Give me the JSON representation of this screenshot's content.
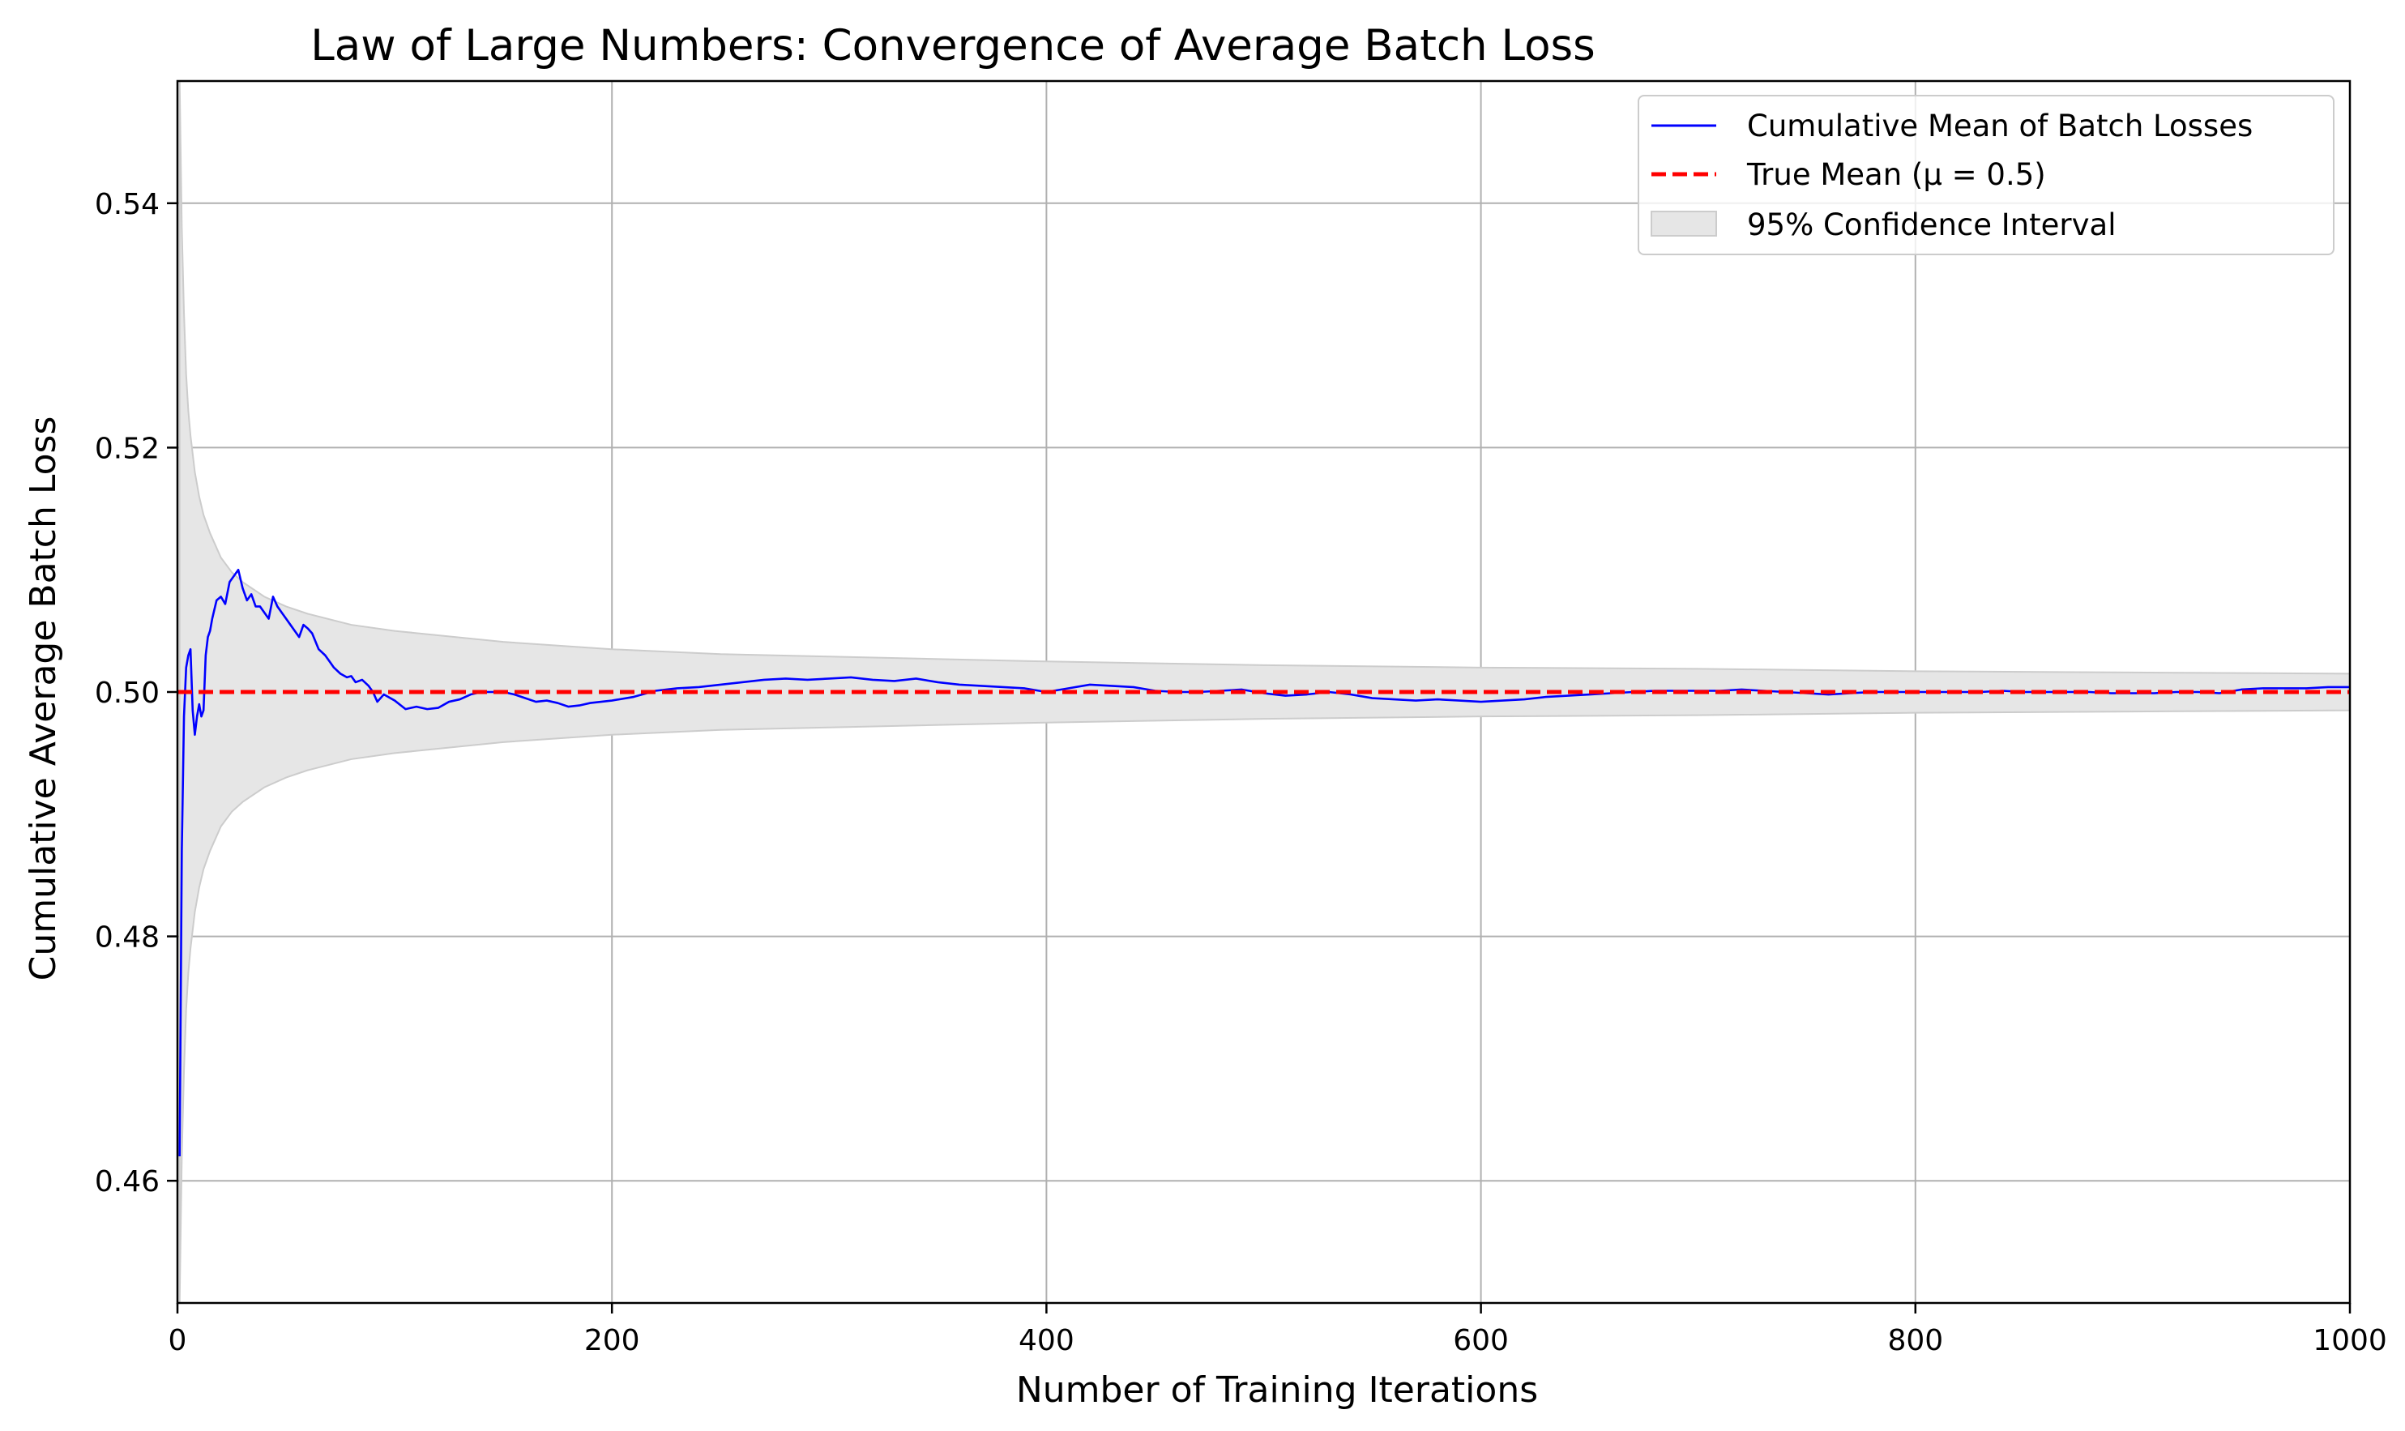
{
  "chart_data": {
    "type": "line",
    "title": "Law of Large Numbers: Convergence of Average Batch Loss",
    "xlabel": "Number of Training Iterations",
    "ylabel": "Cumulative Average Batch Loss",
    "xlim": [
      0,
      1000
    ],
    "ylim": [
      0.45,
      0.55
    ],
    "x_ticks": [
      0,
      200,
      400,
      600,
      800,
      1000
    ],
    "y_ticks": [
      0.46,
      0.48,
      0.5,
      0.52,
      0.54
    ],
    "x_tick_labels": [
      "0",
      "200",
      "400",
      "600",
      "800",
      "1000"
    ],
    "y_tick_labels": [
      "0.46",
      "0.48",
      "0.50",
      "0.52",
      "0.54"
    ],
    "grid": true,
    "legend_position": "top-right",
    "legend": [
      "Cumulative Mean of Batch Losses",
      "True Mean (μ = 0.5)",
      "95% Confidence Interval"
    ],
    "colors": {
      "series": "#0000ff",
      "true_mean": "#ff0000",
      "band": "#e6e6e6",
      "band_edge": "#cccccc",
      "grid": "#b0b0b0",
      "axes": "#000000"
    },
    "series": [
      {
        "name": "Cumulative Mean of Batch Losses",
        "x": [
          1,
          2,
          3,
          4,
          5,
          6,
          7,
          8,
          9,
          10,
          11,
          12,
          13,
          14,
          15,
          16,
          18,
          20,
          22,
          24,
          26,
          28,
          30,
          32,
          34,
          36,
          38,
          40,
          42,
          44,
          46,
          48,
          50,
          52,
          54,
          56,
          58,
          60,
          62,
          65,
          68,
          70,
          72,
          75,
          78,
          80,
          82,
          85,
          88,
          90,
          92,
          95,
          100,
          105,
          110,
          115,
          120,
          125,
          130,
          135,
          140,
          145,
          150,
          155,
          160,
          165,
          170,
          175,
          180,
          185,
          190,
          195,
          200,
          210,
          220,
          230,
          240,
          250,
          260,
          270,
          280,
          290,
          300,
          310,
          320,
          330,
          340,
          350,
          360,
          370,
          380,
          390,
          400,
          410,
          420,
          430,
          440,
          450,
          460,
          470,
          480,
          490,
          500,
          510,
          520,
          530,
          540,
          550,
          560,
          570,
          580,
          590,
          600,
          610,
          620,
          630,
          640,
          650,
          660,
          670,
          680,
          690,
          700,
          710,
          720,
          730,
          740,
          750,
          760,
          770,
          780,
          790,
          800,
          810,
          820,
          830,
          840,
          850,
          860,
          870,
          880,
          890,
          900,
          910,
          920,
          930,
          940,
          950,
          960,
          970,
          980,
          990,
          1000
        ],
        "values": [
          0.462,
          0.487,
          0.498,
          0.502,
          0.503,
          0.5035,
          0.4985,
          0.4965,
          0.498,
          0.499,
          0.498,
          0.4985,
          0.503,
          0.5045,
          0.505,
          0.506,
          0.5075,
          0.5078,
          0.5072,
          0.509,
          0.5095,
          0.51,
          0.5085,
          0.5075,
          0.508,
          0.507,
          0.507,
          0.5065,
          0.506,
          0.5078,
          0.507,
          0.5065,
          0.506,
          0.5055,
          0.505,
          0.5045,
          0.5055,
          0.5052,
          0.5048,
          0.5035,
          0.503,
          0.5025,
          0.502,
          0.5015,
          0.5012,
          0.5013,
          0.5008,
          0.501,
          0.5005,
          0.5,
          0.4992,
          0.4998,
          0.4993,
          0.4986,
          0.4988,
          0.4986,
          0.4987,
          0.4992,
          0.4994,
          0.4998,
          0.5,
          0.5,
          0.5,
          0.4998,
          0.4995,
          0.4992,
          0.4993,
          0.4991,
          0.4988,
          0.4989,
          0.4991,
          0.4992,
          0.4993,
          0.4996,
          0.5001,
          0.5003,
          0.5004,
          0.5006,
          0.5008,
          0.501,
          0.5011,
          0.501,
          0.5011,
          0.5012,
          0.501,
          0.5009,
          0.5011,
          0.5008,
          0.5006,
          0.5005,
          0.5004,
          0.5003,
          0.5,
          0.5003,
          0.5006,
          0.5005,
          0.5004,
          0.5001,
          0.5,
          0.5,
          0.5001,
          0.5002,
          0.4999,
          0.4997,
          0.4998,
          0.5,
          0.4998,
          0.4995,
          0.4994,
          0.4993,
          0.4994,
          0.4993,
          0.4992,
          0.4993,
          0.4994,
          0.4996,
          0.4997,
          0.4998,
          0.4999,
          0.5,
          0.5001,
          0.5001,
          0.5001,
          0.5001,
          0.5002,
          0.5001,
          0.5,
          0.4999,
          0.4998,
          0.4999,
          0.5,
          0.5,
          0.5,
          0.5,
          0.5,
          0.5,
          0.5001,
          0.5,
          0.5,
          0.5,
          0.5,
          0.4999,
          0.4999,
          0.4999,
          0.5,
          0.5,
          0.4999,
          0.5002,
          0.5003,
          0.5003,
          0.5003,
          0.5004,
          0.5004
        ]
      }
    ],
    "true_mean": 0.5,
    "confidence_interval": {
      "n": [
        1,
        2,
        3,
        4,
        5,
        6,
        8,
        10,
        12,
        15,
        20,
        25,
        30,
        40,
        50,
        60,
        80,
        100,
        150,
        200,
        250,
        300,
        400,
        500,
        600,
        700,
        800,
        900,
        1000
      ],
      "lower": [
        0.45,
        0.462,
        0.469,
        0.474,
        0.477,
        0.479,
        0.482,
        0.484,
        0.4855,
        0.487,
        0.489,
        0.4902,
        0.491,
        0.4922,
        0.493,
        0.4936,
        0.4945,
        0.495,
        0.4959,
        0.4965,
        0.4969,
        0.4971,
        0.4975,
        0.4978,
        0.498,
        0.4981,
        0.4983,
        0.4984,
        0.4985
      ],
      "upper": [
        0.55,
        0.538,
        0.531,
        0.526,
        0.523,
        0.521,
        0.518,
        0.516,
        0.5145,
        0.513,
        0.511,
        0.5098,
        0.509,
        0.5078,
        0.507,
        0.5064,
        0.5055,
        0.505,
        0.5041,
        0.5035,
        0.5031,
        0.5029,
        0.5025,
        0.5022,
        0.502,
        0.5019,
        0.5017,
        0.5016,
        0.5015
      ]
    }
  }
}
